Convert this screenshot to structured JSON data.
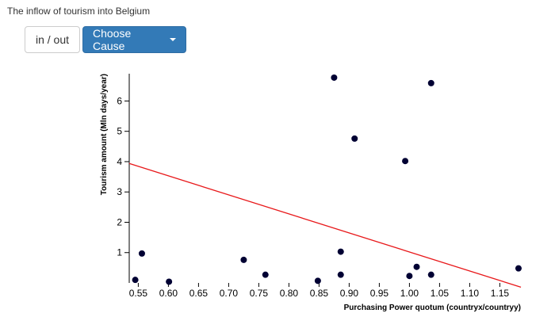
{
  "page": {
    "title": "The inflow of tourism into Belgium"
  },
  "controls": {
    "inout_label": "in / out",
    "cause_label": "Choose Cause"
  },
  "chart_data": {
    "type": "scatter",
    "title": "",
    "xlabel": "Purchasing Power quotum (countryx/countryy)",
    "ylabel": "Tourism amount (Mln days/year)",
    "xlim": [
      0.535,
      1.185
    ],
    "ylim": [
      0,
      6.9
    ],
    "xticks": [
      0.55,
      0.6,
      0.65,
      0.7,
      0.75,
      0.8,
      0.85,
      0.9,
      0.95,
      1.0,
      1.05,
      1.1,
      1.15
    ],
    "xtick_labels": [
      "0.55",
      "0.60",
      "0.65",
      "0.70",
      "0.75",
      "0.80",
      "0.85",
      "0.90",
      "0.95",
      "1.00",
      "1.05",
      "1.10",
      "1.15"
    ],
    "yticks": [
      1,
      2,
      3,
      4,
      5,
      6
    ],
    "ytick_labels": [
      "1",
      "2",
      "3",
      "4",
      "5",
      "6"
    ],
    "point_color": "#000033",
    "trend_color": "#e8181a",
    "points": [
      {
        "x": 0.545,
        "y": 0.1
      },
      {
        "x": 0.556,
        "y": 0.97
      },
      {
        "x": 0.601,
        "y": 0.04
      },
      {
        "x": 0.725,
        "y": 0.76
      },
      {
        "x": 0.761,
        "y": 0.27
      },
      {
        "x": 0.848,
        "y": 0.07
      },
      {
        "x": 0.875,
        "y": 6.77
      },
      {
        "x": 0.886,
        "y": 1.03
      },
      {
        "x": 0.886,
        "y": 0.27
      },
      {
        "x": 0.909,
        "y": 4.76
      },
      {
        "x": 0.993,
        "y": 4.02
      },
      {
        "x": 1.0,
        "y": 0.23
      },
      {
        "x": 1.012,
        "y": 0.53
      },
      {
        "x": 1.036,
        "y": 6.59
      },
      {
        "x": 1.036,
        "y": 0.27
      },
      {
        "x": 1.181,
        "y": 0.48
      }
    ],
    "trendline": {
      "x": [
        0.535,
        1.185
      ],
      "y": [
        3.94,
        -0.14
      ]
    }
  }
}
